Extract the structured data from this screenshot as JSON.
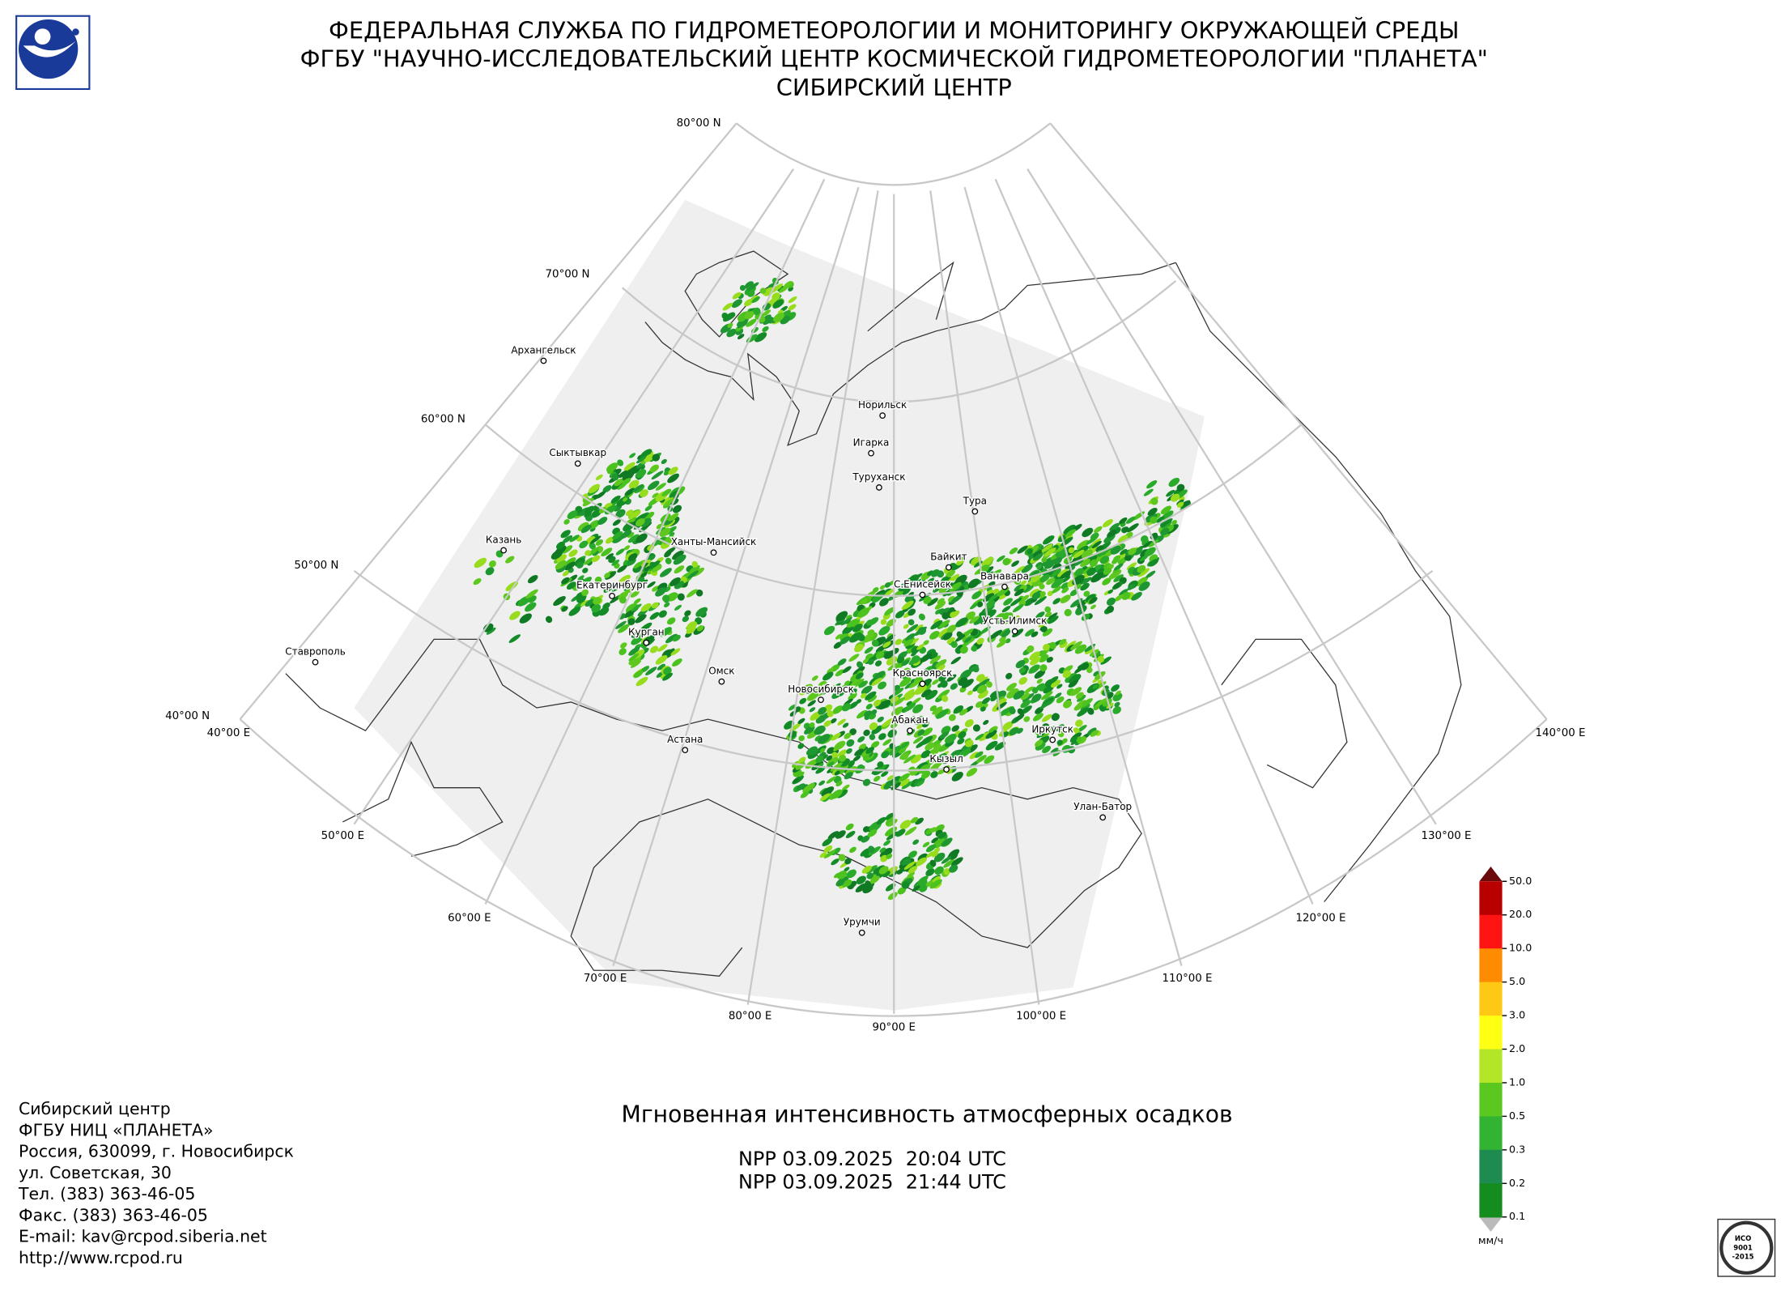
{
  "header": {
    "lines": [
      "ФЕДЕРАЛЬНАЯ СЛУЖБА ПО ГИДРОМЕТЕОРОЛОГИИ И МОНИТОРИНГУ ОКРУЖАЮЩЕЙ СРЕДЫ",
      "ФГБУ \"НАУЧНО-ИССЛЕДОВАТЕЛЬСКИЙ ЦЕНТР КОСМИЧЕСКОЙ ГИДРОМЕТЕОРОЛОГИИ \"ПЛАНЕТА\"",
      "СИБИРСКИЙ ЦЕНТР"
    ]
  },
  "map": {
    "parallels": [
      "80°00 N",
      "70°00 N",
      "60°00 N",
      "50°00 N",
      "40°00 N"
    ],
    "meridians": [
      "40°00 E",
      "50°00 E",
      "60°00 E",
      "70°00 E",
      "80°00 E",
      "90°00 E",
      "100°00 E",
      "110°00 E",
      "120°00 E",
      "130°00 E",
      "140°00 E"
    ],
    "cities": [
      "Архангельск",
      "Сыктывкар",
      "Казань",
      "Ханты-Мансийск",
      "Екатеринбург",
      "Курган",
      "Ставрополь",
      "Омск",
      "Астана",
      "Новосибирск",
      "Норильск",
      "Игарка",
      "Туруханск",
      "Тура",
      "Байкит",
      "Ванавара",
      "С.Енисейск",
      "Усть-Илимск",
      "Красноярск",
      "Абакан",
      "Иркутск",
      "Кызыл",
      "Улан-Батор",
      "Урумчи"
    ]
  },
  "title": "Мгновенная интенсивность атмосферных осадков",
  "passes": [
    "NPP 03.09.2025  20:04 UTC",
    "NPP 03.09.2025  21:44 UTC"
  ],
  "legend": {
    "labels": [
      "50.0",
      "20.0",
      "10.0",
      "5.0",
      "3.0",
      "2.0",
      "1.0",
      "0.5",
      "0.3",
      "0.2",
      "0.1"
    ],
    "unit": "мм/ч"
  },
  "contacts": [
    "Сибирский центр",
    "ФГБУ НИЦ «ПЛАНЕТА»",
    "Россия, 630099, г. Новосибирск",
    "ул. Советская, 30",
    "Тел. (383) 363-46-05",
    "Факс. (383) 363-46-05",
    "E-mail: kav@rcpod.siberia.net",
    "http://www.rcpod.ru"
  ],
  "badge": [
    "ИСО",
    "9001",
    "-2015"
  ]
}
